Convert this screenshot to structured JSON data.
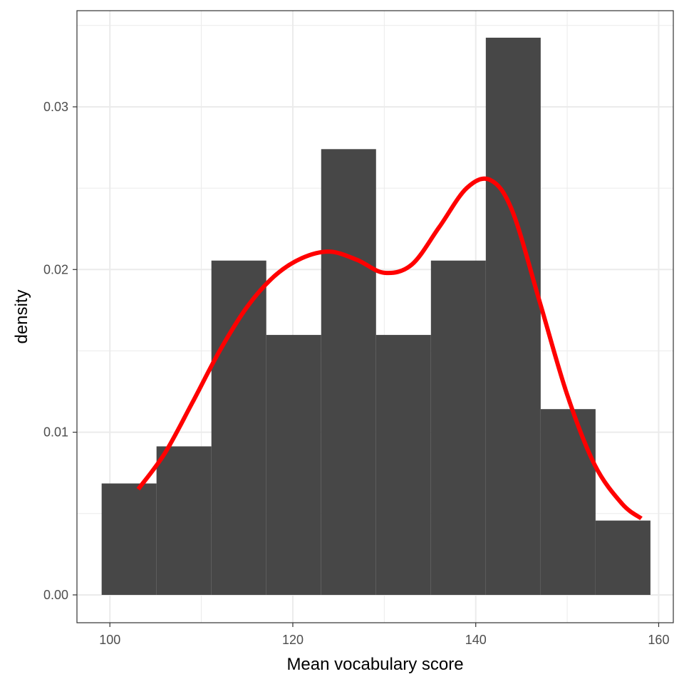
{
  "chart_data": {
    "type": "bar",
    "subtype": "histogram-with-density",
    "title": "",
    "xlabel": "Mean vocabulary score",
    "ylabel": "density",
    "xlim": [
      96.4,
      161.6
    ],
    "ylim": [
      -0.00171,
      0.03591
    ],
    "x_ticks": [
      100,
      120,
      140,
      160
    ],
    "x_tick_labels": [
      "100",
      "120",
      "140",
      "160"
    ],
    "y_ticks": [
      0.0,
      0.01,
      0.02,
      0.03
    ],
    "y_tick_labels": [
      "0.00",
      "0.01",
      "0.02",
      "0.03"
    ],
    "grid": true,
    "bins": [
      {
        "x0": 99.1,
        "x1": 105.1,
        "density": 0.00685
      },
      {
        "x0": 105.1,
        "x1": 111.1,
        "density": 0.00913
      },
      {
        "x0": 111.1,
        "x1": 117.1,
        "density": 0.02055
      },
      {
        "x0": 117.1,
        "x1": 123.1,
        "density": 0.01598
      },
      {
        "x0": 123.1,
        "x1": 129.1,
        "density": 0.0274
      },
      {
        "x0": 129.1,
        "x1": 135.1,
        "density": 0.01598
      },
      {
        "x0": 135.1,
        "x1": 141.1,
        "density": 0.02055
      },
      {
        "x0": 141.1,
        "x1": 147.1,
        "density": 0.03425
      },
      {
        "x0": 147.1,
        "x1": 153.1,
        "density": 0.01142
      },
      {
        "x0": 153.1,
        "x1": 159.1,
        "density": 0.00457
      }
    ],
    "density_curve": {
      "x": [
        103.1,
        106,
        109,
        112,
        115,
        118,
        121,
        124,
        127,
        130,
        133,
        136,
        139,
        141.6,
        144,
        147,
        150,
        153,
        156,
        158.1
      ],
      "y": [
        0.0065,
        0.0087,
        0.0118,
        0.015,
        0.0177,
        0.0196,
        0.0207,
        0.0211,
        0.0206,
        0.0198,
        0.0203,
        0.0226,
        0.025,
        0.0255,
        0.0236,
        0.018,
        0.0123,
        0.008,
        0.0056,
        0.0047
      ]
    },
    "colors": {
      "bar": "#474747",
      "curve": "#ff0000",
      "grid": "#ebebeb",
      "panel_border": "#333333",
      "background": "#ffffff"
    }
  }
}
